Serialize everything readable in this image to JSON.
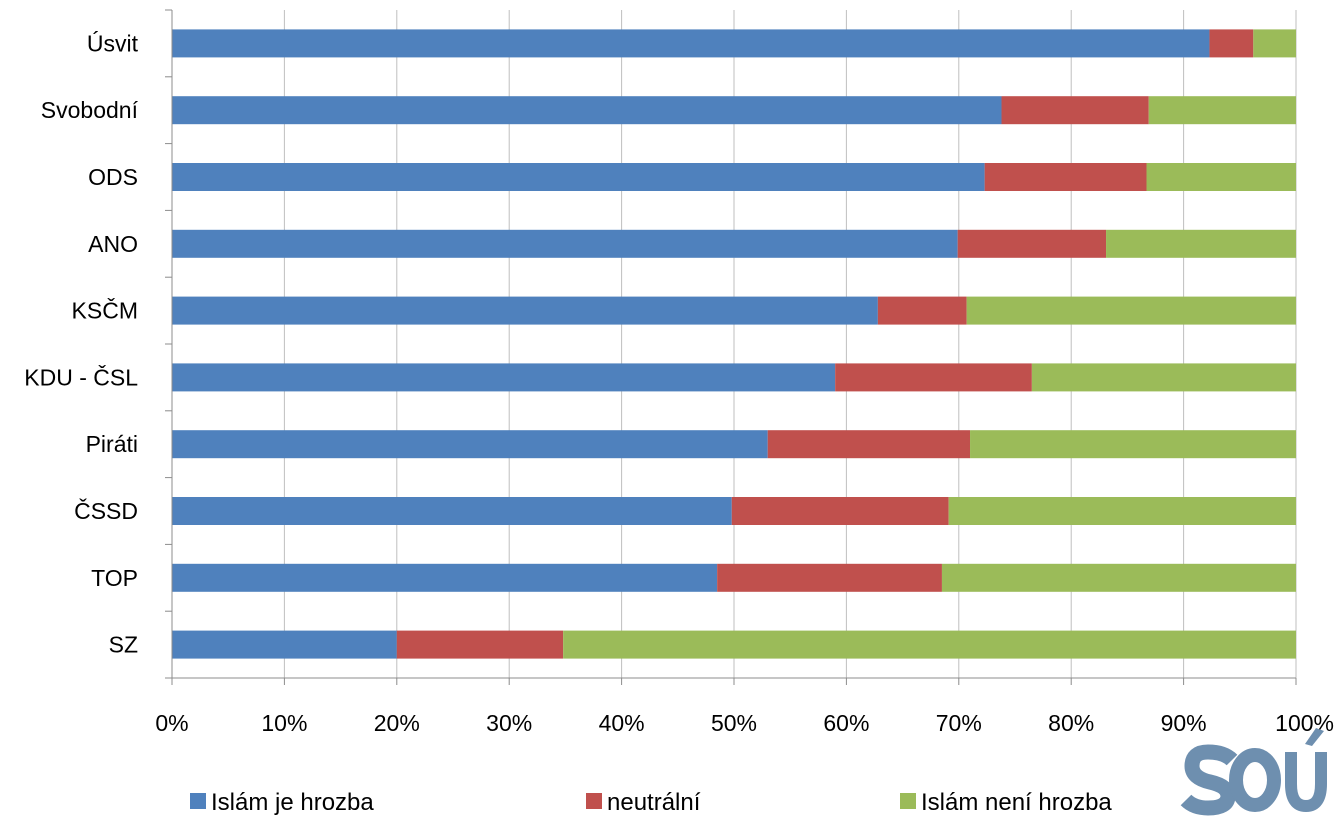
{
  "chart_data": {
    "type": "bar",
    "orientation": "horizontal",
    "stacked": "percent",
    "categories": [
      "Úsvit",
      "Svobodní",
      "ODS",
      "ANO",
      "KSČM",
      "KDU - ČSL",
      "Piráti",
      "ČSSD",
      "TOP",
      "SZ"
    ],
    "series": [
      {
        "name": "Islám je hrozba",
        "color": "#4F81BD",
        "values": [
          92.3,
          73.8,
          72.3,
          69.9,
          62.8,
          59.0,
          53.0,
          49.8,
          48.5,
          20.0
        ]
      },
      {
        "name": "neutrální",
        "color": "#C0504D",
        "values": [
          3.9,
          13.1,
          14.4,
          13.2,
          7.9,
          17.5,
          18.0,
          19.3,
          20.0,
          14.8
        ]
      },
      {
        "name": "Islám není hrozba",
        "color": "#9BBB59",
        "values": [
          3.8,
          13.1,
          13.3,
          16.9,
          29.3,
          23.5,
          29.0,
          30.9,
          31.5,
          65.2
        ]
      }
    ],
    "xticks": [
      "0%",
      "10%",
      "20%",
      "30%",
      "40%",
      "50%",
      "60%",
      "70%",
      "80%",
      "90%",
      "100%"
    ],
    "xlim": [
      0,
      100
    ],
    "grid": true,
    "legend_position": "bottom"
  },
  "logo": {
    "text": "SOÚ",
    "color": "#6E8FAF"
  }
}
